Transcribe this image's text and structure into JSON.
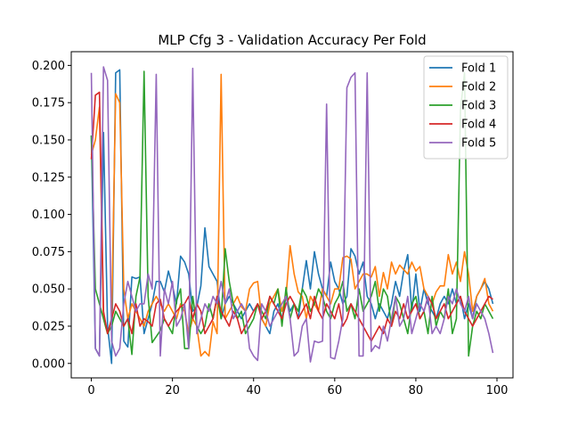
{
  "chart_data": {
    "type": "line",
    "title": "MLP Cfg 3 - Validation Accuracy Per Fold",
    "xlabel": "",
    "ylabel": "",
    "xlim": [
      -4.95,
      103.95
    ],
    "ylim": [
      -0.0097,
      0.2092
    ],
    "xticks": [
      0,
      20,
      40,
      60,
      80,
      100
    ],
    "xtick_labels": [
      "0",
      "20",
      "40",
      "60",
      "80",
      "100"
    ],
    "yticks": [
      0.0,
      0.025,
      0.05,
      0.075,
      0.1,
      0.125,
      0.15,
      0.175,
      0.2
    ],
    "ytick_labels": [
      "0.000",
      "0.025",
      "0.050",
      "0.075",
      "0.100",
      "0.125",
      "0.150",
      "0.175",
      "0.200"
    ],
    "grid": false,
    "legend_position": "top-right",
    "x_start": 0,
    "series": [
      {
        "name": "Fold 1",
        "color": "#1f77b4",
        "values": [
          0.153,
          0.01,
          0.005,
          0.155,
          0.025,
          0.0,
          0.195,
          0.197,
          0.015,
          0.011,
          0.058,
          0.057,
          0.058,
          0.02,
          0.03,
          0.04,
          0.055,
          0.055,
          0.048,
          0.062,
          0.052,
          0.04,
          0.072,
          0.068,
          0.06,
          0.035,
          0.038,
          0.052,
          0.091,
          0.065,
          0.06,
          0.055,
          0.03,
          0.04,
          0.045,
          0.04,
          0.035,
          0.03,
          0.035,
          0.04,
          0.035,
          0.04,
          0.03,
          0.025,
          0.02,
          0.035,
          0.04,
          0.03,
          0.045,
          0.035,
          0.04,
          0.03,
          0.05,
          0.069,
          0.05,
          0.075,
          0.06,
          0.05,
          0.045,
          0.068,
          0.055,
          0.05,
          0.04,
          0.045,
          0.077,
          0.072,
          0.06,
          0.068,
          0.045,
          0.04,
          0.03,
          0.04,
          0.035,
          0.03,
          0.04,
          0.055,
          0.045,
          0.062,
          0.073,
          0.035,
          0.06,
          0.035,
          0.05,
          0.04,
          0.035,
          0.03,
          0.04,
          0.045,
          0.04,
          0.05,
          0.04,
          0.045,
          0.03,
          0.04,
          0.03,
          0.045,
          0.05,
          0.055,
          0.05,
          0.04
        ]
      },
      {
        "name": "Fold 2",
        "color": "#ff7f0e",
        "values": [
          0.14,
          0.15,
          0.172,
          0.03,
          0.02,
          0.03,
          0.181,
          0.175,
          0.05,
          0.03,
          0.04,
          0.035,
          0.03,
          0.025,
          0.035,
          0.04,
          0.045,
          0.04,
          0.035,
          0.04,
          0.035,
          0.03,
          0.04,
          0.035,
          0.02,
          0.03,
          0.025,
          0.005,
          0.008,
          0.005,
          0.028,
          0.02,
          0.194,
          0.03,
          0.035,
          0.04,
          0.045,
          0.038,
          0.035,
          0.05,
          0.054,
          0.055,
          0.03,
          0.025,
          0.04,
          0.045,
          0.05,
          0.035,
          0.045,
          0.079,
          0.06,
          0.048,
          0.045,
          0.03,
          0.045,
          0.04,
          0.035,
          0.05,
          0.045,
          0.04,
          0.05,
          0.05,
          0.071,
          0.072,
          0.07,
          0.05,
          0.055,
          0.06,
          0.06,
          0.058,
          0.065,
          0.045,
          0.061,
          0.05,
          0.068,
          0.06,
          0.066,
          0.063,
          0.06,
          0.068,
          0.062,
          0.065,
          0.05,
          0.045,
          0.04,
          0.048,
          0.052,
          0.052,
          0.073,
          0.06,
          0.068,
          0.055,
          0.075,
          0.06,
          0.035,
          0.045,
          0.05,
          0.057,
          0.04,
          0.035
        ]
      },
      {
        "name": "Fold 3",
        "color": "#2ca02c",
        "values": [
          0.153,
          0.05,
          0.04,
          0.03,
          0.02,
          0.025,
          0.035,
          0.03,
          0.025,
          0.03,
          0.006,
          0.045,
          0.058,
          0.196,
          0.045,
          0.014,
          0.018,
          0.022,
          0.03,
          0.025,
          0.02,
          0.042,
          0.05,
          0.01,
          0.01,
          0.045,
          0.025,
          0.02,
          0.025,
          0.04,
          0.03,
          0.045,
          0.03,
          0.077,
          0.055,
          0.04,
          0.03,
          0.035,
          0.02,
          0.025,
          0.03,
          0.04,
          0.035,
          0.03,
          0.045,
          0.04,
          0.05,
          0.025,
          0.051,
          0.03,
          0.04,
          0.035,
          0.05,
          0.045,
          0.035,
          0.04,
          0.05,
          0.045,
          0.035,
          0.03,
          0.04,
          0.045,
          0.055,
          0.035,
          0.04,
          0.03,
          0.05,
          0.035,
          0.04,
          0.045,
          0.055,
          0.035,
          0.05,
          0.045,
          0.025,
          0.045,
          0.04,
          0.03,
          0.02,
          0.04,
          0.045,
          0.03,
          0.035,
          0.02,
          0.045,
          0.025,
          0.035,
          0.03,
          0.05,
          0.02,
          0.03,
          0.17,
          0.195,
          0.005,
          0.025,
          0.035,
          0.03,
          0.04,
          0.035,
          0.03
        ]
      },
      {
        "name": "Fold 4",
        "color": "#d62728",
        "values": [
          0.137,
          0.18,
          0.182,
          0.035,
          0.02,
          0.03,
          0.04,
          0.035,
          0.025,
          0.03,
          0.02,
          0.04,
          0.025,
          0.03,
          0.028,
          0.025,
          0.04,
          0.043,
          0.03,
          0.025,
          0.03,
          0.035,
          0.038,
          0.04,
          0.045,
          0.03,
          0.04,
          0.035,
          0.02,
          0.025,
          0.03,
          0.045,
          0.035,
          0.03,
          0.025,
          0.035,
          0.03,
          0.02,
          0.025,
          0.03,
          0.035,
          0.04,
          0.03,
          0.035,
          0.045,
          0.04,
          0.035,
          0.03,
          0.04,
          0.045,
          0.04,
          0.03,
          0.035,
          0.04,
          0.03,
          0.045,
          0.035,
          0.03,
          0.04,
          0.035,
          0.03,
          0.04,
          0.025,
          0.03,
          0.04,
          0.035,
          0.03,
          0.025,
          0.02,
          0.015,
          0.02,
          0.025,
          0.02,
          0.03,
          0.025,
          0.035,
          0.03,
          0.04,
          0.03,
          0.035,
          0.04,
          0.03,
          0.035,
          0.045,
          0.04,
          0.03,
          0.035,
          0.04,
          0.03,
          0.035,
          0.04,
          0.045,
          0.035,
          0.03,
          0.025,
          0.03,
          0.035,
          0.04,
          0.045,
          0.043
        ]
      },
      {
        "name": "Fold 5",
        "color": "#9467bd",
        "values": [
          0.195,
          0.01,
          0.005,
          0.199,
          0.19,
          0.015,
          0.005,
          0.01,
          0.04,
          0.055,
          0.045,
          0.035,
          0.04,
          0.04,
          0.06,
          0.05,
          0.194,
          0.005,
          0.05,
          0.04,
          0.055,
          0.025,
          0.03,
          0.04,
          0.01,
          0.198,
          0.02,
          0.03,
          0.04,
          0.035,
          0.045,
          0.04,
          0.055,
          0.04,
          0.05,
          0.03,
          0.035,
          0.04,
          0.035,
          0.01,
          0.005,
          0.002,
          0.04,
          0.035,
          0.025,
          0.03,
          0.035,
          0.04,
          0.045,
          0.03,
          0.005,
          0.008,
          0.025,
          0.03,
          0.001,
          0.015,
          0.014,
          0.015,
          0.174,
          0.004,
          0.003,
          0.015,
          0.03,
          0.185,
          0.192,
          0.195,
          0.005,
          0.005,
          0.195,
          0.008,
          0.012,
          0.01,
          0.025,
          0.015,
          0.03,
          0.045,
          0.025,
          0.03,
          0.045,
          0.02,
          0.03,
          0.04,
          0.035,
          0.045,
          0.02,
          0.025,
          0.02,
          0.03,
          0.045,
          0.04,
          0.05,
          0.04,
          0.035,
          0.045,
          0.03,
          0.04,
          0.035,
          0.03,
          0.02,
          0.007
        ]
      }
    ]
  }
}
